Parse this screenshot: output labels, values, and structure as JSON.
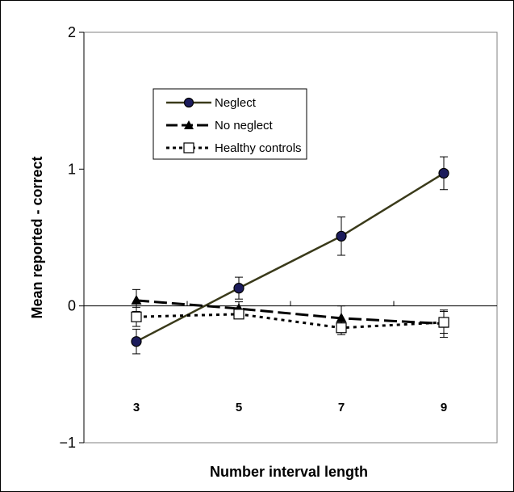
{
  "chart_data": {
    "type": "line",
    "title": "",
    "xlabel": "Number interval length",
    "ylabel": "Mean reported  - correct",
    "categories": [
      "3",
      "5",
      "7",
      "9"
    ],
    "x": [
      3,
      5,
      7,
      9
    ],
    "ylim": [
      -1,
      2
    ],
    "y_ticks": [
      "−1",
      "0",
      "1",
      "2"
    ],
    "grid": false,
    "legend_position": "top-left",
    "series": [
      {
        "name": "Neglect",
        "values": [
          -0.26,
          0.13,
          0.51,
          0.97
        ],
        "error": [
          0.09,
          0.08,
          0.14,
          0.12
        ],
        "color": "#3a3a1a",
        "marker": "circle",
        "marker_color": "#1c1c5c",
        "line_style": "solid"
      },
      {
        "name": "No neglect",
        "values": [
          0.04,
          -0.02,
          -0.09,
          -0.13
        ],
        "error": [
          0.08,
          0.05,
          0.09,
          0.1
        ],
        "color": "#000000",
        "marker": "triangle",
        "marker_color": "#000000",
        "line_style": "long-dash"
      },
      {
        "name": "Healthy controls",
        "values": [
          -0.08,
          -0.06,
          -0.16,
          -0.12
        ],
        "error": [
          0.07,
          0.03,
          0.05,
          0.08
        ],
        "color": "#000000",
        "marker": "square",
        "marker_color": "#ffffff",
        "line_style": "dotted"
      }
    ]
  }
}
